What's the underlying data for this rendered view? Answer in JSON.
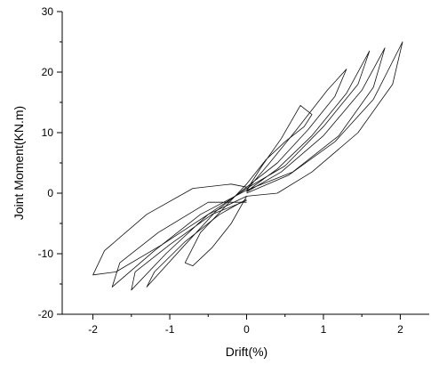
{
  "chart_data": {
    "type": "line",
    "title": "",
    "xlabel": "Drift(%)",
    "ylabel": "Joint Moment(KN.m)",
    "xlim": [
      -2.4,
      2.4
    ],
    "ylim": [
      -20,
      30
    ],
    "xticks": [
      -2,
      -1,
      0,
      1,
      2
    ],
    "yticks": [
      -20,
      -10,
      0,
      10,
      20,
      30
    ],
    "grid": false,
    "legend": "none",
    "line_color": "#111111",
    "series": [
      {
        "x": [
          0.0,
          0.2,
          0.45,
          0.7,
          0.85,
          0.75,
          0.5,
          0.25,
          0.0,
          -0.3,
          -0.6,
          -0.8,
          -0.7,
          -0.45,
          -0.2,
          0.0
        ],
        "y": [
          0.5,
          4.5,
          9.0,
          14.5,
          13.0,
          11.0,
          8.5,
          5.5,
          1.5,
          -2.5,
          -6.5,
          -11.5,
          -12.0,
          -9.0,
          -5.0,
          -0.5
        ]
      },
      {
        "x": [
          0.0,
          0.3,
          0.65,
          1.05,
          1.3,
          1.15,
          0.8,
          0.4,
          0.0,
          -0.4,
          -0.8,
          -1.3,
          -1.2,
          -0.8,
          -0.35,
          0.0
        ],
        "y": [
          0.5,
          5.0,
          10.5,
          17.0,
          20.5,
          16.0,
          10.5,
          5.0,
          1.0,
          -3.0,
          -8.5,
          -15.5,
          -13.0,
          -8.0,
          -3.5,
          -1.0
        ]
      },
      {
        "x": [
          0.0,
          0.4,
          0.85,
          1.3,
          1.6,
          1.45,
          1.0,
          0.5,
          0.0,
          -0.5,
          -1.05,
          -1.5,
          -1.45,
          -1.0,
          -0.45,
          0.0
        ],
        "y": [
          0.3,
          4.0,
          9.5,
          16.5,
          23.5,
          18.0,
          11.0,
          4.5,
          0.8,
          -3.5,
          -10.0,
          -16.0,
          -13.0,
          -8.5,
          -3.5,
          -1.2
        ]
      },
      {
        "x": [
          0.0,
          0.45,
          1.0,
          1.5,
          1.8,
          1.65,
          1.2,
          0.6,
          0.0,
          -0.6,
          -1.2,
          -1.75,
          -1.65,
          -1.15,
          -0.5,
          0.0
        ],
        "y": [
          0.2,
          3.5,
          9.5,
          17.0,
          24.0,
          17.5,
          9.5,
          3.5,
          0.5,
          -3.5,
          -9.5,
          -15.5,
          -11.5,
          -6.5,
          -1.5,
          -1.5
        ]
      },
      {
        "x": [
          0.0,
          0.55,
          1.15,
          1.65,
          2.03,
          1.9,
          1.45,
          0.85,
          0.4,
          0.0,
          -0.5,
          -1.1,
          -1.7,
          -2.0,
          -1.85,
          -1.3,
          -0.7,
          -0.2,
          0.0
        ],
        "y": [
          0.0,
          3.0,
          8.5,
          15.5,
          25.0,
          18.0,
          10.0,
          3.5,
          0.0,
          -0.5,
          -3.5,
          -8.5,
          -13.0,
          -13.5,
          -9.5,
          -3.5,
          0.8,
          1.5,
          1.0
        ]
      }
    ]
  }
}
